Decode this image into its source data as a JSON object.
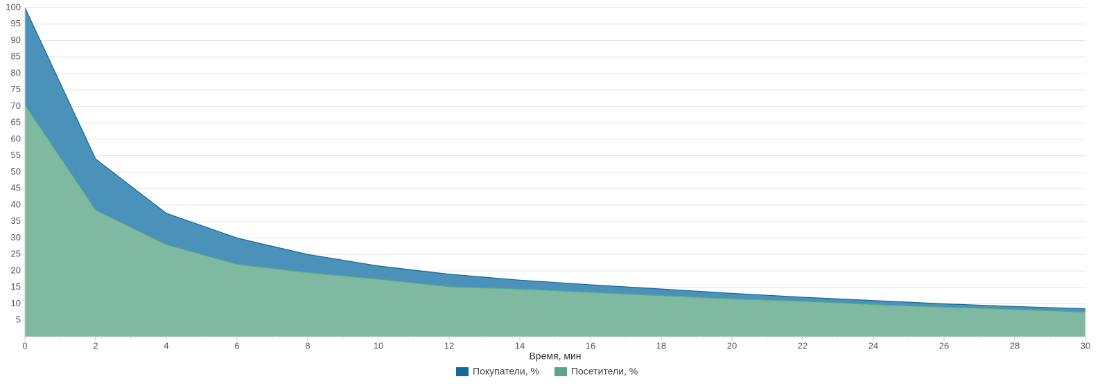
{
  "chart_data": {
    "type": "area",
    "x_label": "Время, мин",
    "x": [
      0,
      2,
      4,
      6,
      8,
      10,
      12,
      14,
      16,
      18,
      20,
      22,
      24,
      26,
      28,
      30
    ],
    "series": [
      {
        "name": "Покупатели, %",
        "color": "#14699a",
        "fill": "#4a92ba",
        "values": [
          100,
          54,
          37.5,
          30,
          25,
          21.5,
          19,
          17.2,
          15.8,
          14.5,
          13.2,
          12,
          11,
          10,
          9.2,
          8.5
        ]
      },
      {
        "name": "Посетители, %",
        "color": "#5aa58a",
        "fill": "#7fb9a2",
        "values": [
          70.5,
          38.5,
          28,
          22,
          19.5,
          17.5,
          15.2,
          14.5,
          13.5,
          12.5,
          11.5,
          10.8,
          9.8,
          9,
          8.3,
          7.5
        ]
      }
    ],
    "xlim": [
      0,
      30
    ],
    "xticks": [
      0,
      2,
      4,
      6,
      8,
      10,
      12,
      14,
      16,
      18,
      20,
      22,
      24,
      26,
      28,
      30
    ],
    "ylim": [
      0,
      100
    ],
    "yticks": [
      5,
      10,
      15,
      20,
      25,
      30,
      35,
      40,
      45,
      50,
      55,
      60,
      65,
      70,
      75,
      80,
      85,
      90,
      95,
      100
    ],
    "grid": true,
    "legend": "bottom"
  }
}
